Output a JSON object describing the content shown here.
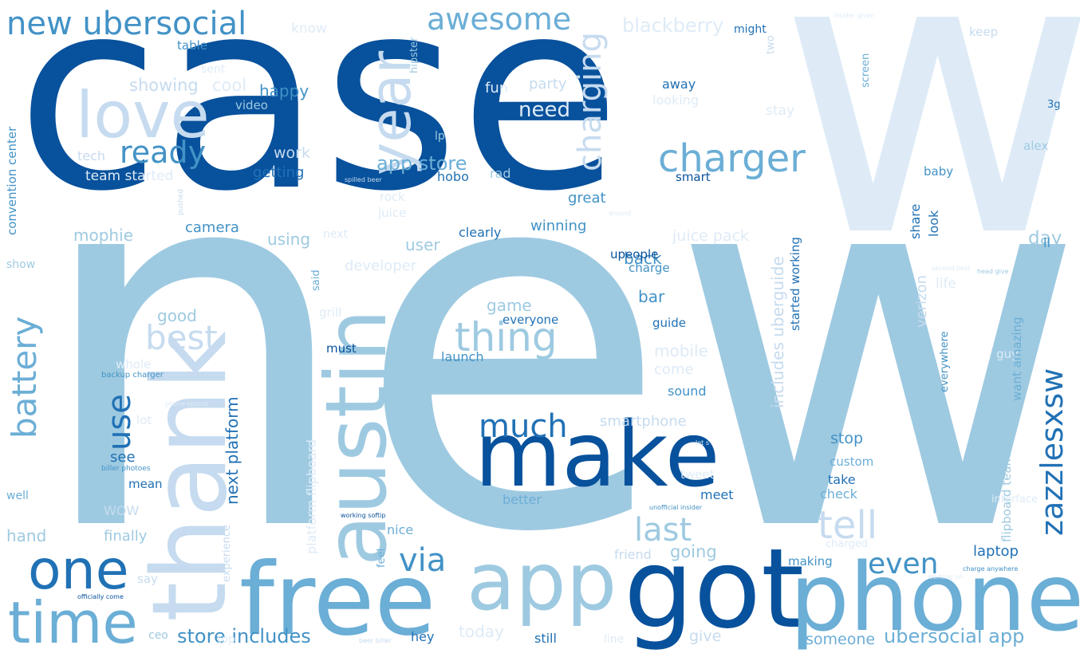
{
  "palette": {
    "dark": "#08519c",
    "medium": "#3182bd",
    "light": "#6baed6",
    "pale": "#9ecae1",
    "faint": "#c6dbef",
    "faintest": "#deebf7"
  },
  "words": [
    {
      "text": "new",
      "color": "#9ecae1"
    },
    {
      "text": "case",
      "color": "#08519c"
    },
    {
      "text": "w",
      "color": "#deebf7"
    },
    {
      "text": "make",
      "color": "#08519c"
    },
    {
      "text": "got",
      "color": "#08519c"
    },
    {
      "text": "phone",
      "color": "#6baed6"
    },
    {
      "text": "free",
      "color": "#6baed6"
    },
    {
      "text": "app",
      "color": "#9ecae1"
    },
    {
      "text": "thank",
      "color": "#c6dbef"
    },
    {
      "text": "austin",
      "color": "#9ecae1"
    },
    {
      "text": "one",
      "color": "#2171b5"
    },
    {
      "text": "time",
      "color": "#6baed6"
    },
    {
      "text": "love",
      "color": "#c6dbef"
    },
    {
      "text": "year",
      "color": "#c6dbef"
    },
    {
      "text": "new ubersocial",
      "color": "#4292c6"
    },
    {
      "text": "awesome",
      "color": "#6baed6"
    },
    {
      "text": "charger",
      "color": "#6baed6"
    },
    {
      "text": "charging",
      "color": "#c6dbef"
    },
    {
      "text": "ready",
      "color": "#4292c6"
    },
    {
      "text": "thing",
      "color": "#9ecae1"
    },
    {
      "text": "much",
      "color": "#2171b5"
    },
    {
      "text": "use",
      "color": "#2171b5"
    },
    {
      "text": "battery",
      "color": "#6baed6"
    },
    {
      "text": "zazzlesxsw",
      "color": "#2171b5"
    },
    {
      "text": "tell",
      "color": "#c6dbef"
    },
    {
      "text": "last",
      "color": "#9ecae1"
    },
    {
      "text": "via",
      "color": "#4292c6"
    },
    {
      "text": "even",
      "color": "#4292c6"
    },
    {
      "text": "best",
      "color": "#c6dbef"
    },
    {
      "text": "blackberry",
      "color": "#deebf7"
    },
    {
      "text": "store includes",
      "color": "#4292c6"
    },
    {
      "text": "ubersocial app",
      "color": "#6baed6"
    },
    {
      "text": "app store",
      "color": "#6baed6"
    },
    {
      "text": "showing",
      "color": "#c6dbef"
    },
    {
      "text": "cool",
      "color": "#deebf7"
    },
    {
      "text": "happy",
      "color": "#4292c6"
    },
    {
      "text": "work",
      "color": "#c6dbef"
    },
    {
      "text": "getting",
      "color": "#2171b5"
    },
    {
      "text": "tech",
      "color": "#c6dbef"
    },
    {
      "text": "team started",
      "color": "#deebf7"
    },
    {
      "text": "mophie",
      "color": "#9ecae1"
    },
    {
      "text": "camera",
      "color": "#4292c6"
    },
    {
      "text": "using",
      "color": "#9ecae1"
    },
    {
      "text": "user",
      "color": "#9ecae1"
    },
    {
      "text": "developer",
      "color": "#deebf7"
    },
    {
      "text": "next",
      "color": "#deebf7"
    },
    {
      "text": "clearly",
      "color": "#2171b5"
    },
    {
      "text": "winning",
      "color": "#4292c6"
    },
    {
      "text": "great",
      "color": "#4292c6"
    },
    {
      "text": "hobo",
      "color": "#2171b5"
    },
    {
      "text": "rad",
      "color": "#9ecae1"
    },
    {
      "text": "rock",
      "color": "#deebf7"
    },
    {
      "text": "juice",
      "color": "#deebf7"
    },
    {
      "text": "need",
      "color": "#deebf7"
    },
    {
      "text": "party",
      "color": "#c6dbef"
    },
    {
      "text": "fun",
      "color": "#deebf7"
    },
    {
      "text": "away",
      "color": "#2171b5"
    },
    {
      "text": "looking",
      "color": "#deebf7"
    },
    {
      "text": "smart",
      "color": "#08519c"
    },
    {
      "text": "stay",
      "color": "#deebf7"
    },
    {
      "text": "might",
      "color": "#2171b5"
    },
    {
      "text": "know",
      "color": "#deebf7"
    },
    {
      "text": "table",
      "color": "#4292c6"
    },
    {
      "text": "video",
      "color": "#9ecae1"
    },
    {
      "text": "lp",
      "color": "#9ecae1"
    },
    {
      "text": "keep",
      "color": "#c6dbef"
    },
    {
      "text": "alex",
      "color": "#9ecae1"
    },
    {
      "text": "3g",
      "color": "#2171b5"
    },
    {
      "text": "baby",
      "color": "#4292c6"
    },
    {
      "text": "day",
      "color": "#9ecae1"
    },
    {
      "text": "ll",
      "color": "#4292c6"
    },
    {
      "text": "back",
      "color": "#4292c6"
    },
    {
      "text": "juice pack",
      "color": "#deebf7"
    },
    {
      "text": "upeople",
      "color": "#08519c"
    },
    {
      "text": "charge",
      "color": "#4292c6"
    },
    {
      "text": "bar",
      "color": "#4292c6"
    },
    {
      "text": "guide",
      "color": "#2171b5"
    },
    {
      "text": "game",
      "color": "#9ecae1"
    },
    {
      "text": "everyone",
      "color": "#2171b5"
    },
    {
      "text": "launch",
      "color": "#4292c6"
    },
    {
      "text": "must",
      "color": "#08519c"
    },
    {
      "text": "good",
      "color": "#9ecae1"
    },
    {
      "text": "mobile",
      "color": "#deebf7"
    },
    {
      "text": "come",
      "color": "#deebf7"
    },
    {
      "text": "sound",
      "color": "#4292c6"
    },
    {
      "text": "smartphone",
      "color": "#c6dbef"
    },
    {
      "text": "stop",
      "color": "#4292c6"
    },
    {
      "text": "custom",
      "color": "#6baed6"
    },
    {
      "text": "take",
      "color": "#2171b5"
    },
    {
      "text": "check",
      "color": "#6baed6"
    },
    {
      "text": "meet",
      "color": "#2171b5"
    },
    {
      "text": "tweet",
      "color": "#deebf7"
    },
    {
      "text": "better",
      "color": "#6baed6"
    },
    {
      "text": "going",
      "color": "#9ecae1"
    },
    {
      "text": "friend",
      "color": "#c6dbef"
    },
    {
      "text": "making",
      "color": "#4292c6"
    },
    {
      "text": "laptop",
      "color": "#2171b5"
    },
    {
      "text": "someone",
      "color": "#6baed6"
    },
    {
      "text": "still",
      "color": "#2171b5"
    },
    {
      "text": "give",
      "color": "#c6dbef"
    },
    {
      "text": "today",
      "color": "#deebf7"
    },
    {
      "text": "hey",
      "color": "#2171b5"
    },
    {
      "text": "nice",
      "color": "#6baed6"
    },
    {
      "text": "see",
      "color": "#2171b5"
    },
    {
      "text": "mean",
      "color": "#2171b5"
    },
    {
      "text": "WOW",
      "color": "#c6dbef"
    },
    {
      "text": "finally",
      "color": "#9ecae1"
    },
    {
      "text": "hand",
      "color": "#9ecae1"
    },
    {
      "text": "well",
      "color": "#6baed6"
    },
    {
      "text": "show",
      "color": "#9ecae1"
    },
    {
      "text": "say",
      "color": "#c6dbef"
    },
    {
      "text": "ceo",
      "color": "#9ecae1"
    },
    {
      "text": "top",
      "color": "#deebf7"
    },
    {
      "text": "line",
      "color": "#deebf7"
    },
    {
      "text": "life",
      "color": "#deebf7"
    },
    {
      "text": "guy",
      "color": "#deebf7"
    },
    {
      "text": "want amazing",
      "color": "#6baed6"
    },
    {
      "text": "everywhere",
      "color": "#4292c6"
    },
    {
      "text": "share",
      "color": "#2171b5"
    },
    {
      "text": "look",
      "color": "#2171b5"
    },
    {
      "text": "verizon",
      "color": "#c6dbef"
    },
    {
      "text": "includes uberguide",
      "color": "#c6dbef"
    },
    {
      "text": "started working",
      "color": "#2171b5"
    },
    {
      "text": "screen",
      "color": "#6baed6"
    },
    {
      "text": "two",
      "color": "#c6dbef"
    },
    {
      "text": "hipster",
      "color": "#9ecae1"
    },
    {
      "text": "next platform",
      "color": "#2171b5"
    },
    {
      "text": "platform flipboard",
      "color": "#deebf7"
    },
    {
      "text": "experience",
      "color": "#c6dbef"
    },
    {
      "text": "feel",
      "color": "#6baed6"
    },
    {
      "text": "said",
      "color": "#6baed6"
    },
    {
      "text": "grill",
      "color": "#deebf7"
    },
    {
      "text": "convention center",
      "color": "#4292c6"
    },
    {
      "text": "flipboard team",
      "color": "#9ecae1"
    },
    {
      "text": "interface",
      "color": "#deebf7"
    },
    {
      "text": "charged",
      "color": "#deebf7"
    },
    {
      "text": "backup charger",
      "color": "#4292c6"
    },
    {
      "text": "biller photoes",
      "color": "#4292c6"
    },
    {
      "text": "officially come",
      "color": "#08519c"
    },
    {
      "text": "working softip",
      "color": "#08519c"
    },
    {
      "text": "unofficial insider",
      "color": "#4292c6"
    },
    {
      "text": "spilled beer",
      "color": "#c6dbef"
    },
    {
      "text": "head give",
      "color": "#9ecae1"
    },
    {
      "text": "charge anywhere",
      "color": "#4292c6"
    },
    {
      "text": "beer biller",
      "color": "#c6dbef"
    },
    {
      "text": "insider given",
      "color": "#deebf7"
    },
    {
      "text": "pushed",
      "color": "#c6dbef"
    },
    {
      "text": "whole",
      "color": "#deebf7"
    },
    {
      "text": "lot",
      "color": "#deebf7"
    },
    {
      "text": "sent",
      "color": "#deebf7"
    },
    {
      "text": "phone launch",
      "color": "#deebf7"
    },
    {
      "text": "let s",
      "color": "#deebf7"
    },
    {
      "text": "around",
      "color": "#deebf7"
    },
    {
      "text": "second best",
      "color": "#deebf7"
    },
    {
      "text": "working on",
      "color": "#deebf7"
    }
  ]
}
